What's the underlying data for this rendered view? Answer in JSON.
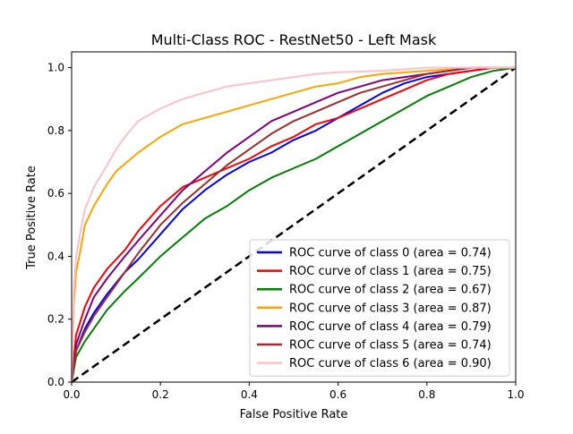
{
  "chart_data": {
    "type": "line",
    "title": "Multi-Class ROC - RestNet50 - Left Mask",
    "xlabel": "False Positive Rate",
    "ylabel": "True Positive Rate",
    "xlim": [
      0,
      1
    ],
    "ylim": [
      0,
      1.05
    ],
    "xticks": [
      "0.0",
      "0.2",
      "0.4",
      "0.6",
      "0.8",
      "1.0"
    ],
    "yticks": [
      "0.0",
      "0.2",
      "0.4",
      "0.6",
      "0.8",
      "1.0"
    ],
    "grid": false,
    "legend_position": "lower right",
    "diagonal": {
      "x": [
        0,
        1
      ],
      "y": [
        0,
        1
      ],
      "color": "#000000",
      "style": "dashed"
    },
    "series": [
      {
        "name": "ROC curve of class 0 (area = 0.74)",
        "color": "#0000ff",
        "points": [
          [
            0,
            0
          ],
          [
            0.01,
            0.1
          ],
          [
            0.03,
            0.17
          ],
          [
            0.05,
            0.22
          ],
          [
            0.08,
            0.28
          ],
          [
            0.12,
            0.35
          ],
          [
            0.15,
            0.39
          ],
          [
            0.2,
            0.47
          ],
          [
            0.25,
            0.55
          ],
          [
            0.3,
            0.61
          ],
          [
            0.35,
            0.66
          ],
          [
            0.4,
            0.7
          ],
          [
            0.45,
            0.73
          ],
          [
            0.5,
            0.77
          ],
          [
            0.55,
            0.8
          ],
          [
            0.6,
            0.84
          ],
          [
            0.65,
            0.88
          ],
          [
            0.7,
            0.92
          ],
          [
            0.75,
            0.95
          ],
          [
            0.8,
            0.97
          ],
          [
            0.85,
            0.98
          ],
          [
            0.9,
            0.99
          ],
          [
            0.95,
            1.0
          ],
          [
            1,
            1
          ]
        ]
      },
      {
        "name": "ROC curve of class 1 (area = 0.75)",
        "color": "#ff0000",
        "points": [
          [
            0,
            0
          ],
          [
            0.01,
            0.15
          ],
          [
            0.03,
            0.24
          ],
          [
            0.05,
            0.3
          ],
          [
            0.08,
            0.36
          ],
          [
            0.12,
            0.42
          ],
          [
            0.15,
            0.48
          ],
          [
            0.2,
            0.56
          ],
          [
            0.25,
            0.62
          ],
          [
            0.3,
            0.65
          ],
          [
            0.35,
            0.68
          ],
          [
            0.4,
            0.71
          ],
          [
            0.45,
            0.75
          ],
          [
            0.5,
            0.78
          ],
          [
            0.55,
            0.82
          ],
          [
            0.6,
            0.84
          ],
          [
            0.65,
            0.87
          ],
          [
            0.7,
            0.9
          ],
          [
            0.75,
            0.93
          ],
          [
            0.8,
            0.96
          ],
          [
            0.85,
            0.98
          ],
          [
            0.9,
            0.99
          ],
          [
            0.95,
            1.0
          ],
          [
            1,
            1
          ]
        ]
      },
      {
        "name": "ROC curve of class 2 (area = 0.67)",
        "color": "#008000",
        "points": [
          [
            0,
            0
          ],
          [
            0.01,
            0.08
          ],
          [
            0.03,
            0.13
          ],
          [
            0.05,
            0.17
          ],
          [
            0.08,
            0.23
          ],
          [
            0.12,
            0.29
          ],
          [
            0.15,
            0.33
          ],
          [
            0.2,
            0.4
          ],
          [
            0.25,
            0.46
          ],
          [
            0.3,
            0.52
          ],
          [
            0.35,
            0.56
          ],
          [
            0.4,
            0.61
          ],
          [
            0.45,
            0.65
          ],
          [
            0.5,
            0.68
          ],
          [
            0.55,
            0.71
          ],
          [
            0.6,
            0.75
          ],
          [
            0.65,
            0.79
          ],
          [
            0.7,
            0.83
          ],
          [
            0.75,
            0.87
          ],
          [
            0.8,
            0.91
          ],
          [
            0.85,
            0.94
          ],
          [
            0.9,
            0.97
          ],
          [
            0.95,
            0.99
          ],
          [
            1,
            1
          ]
        ]
      },
      {
        "name": "ROC curve of class 3 (area = 0.87)",
        "color": "#ffa500",
        "points": [
          [
            0,
            0
          ],
          [
            0.005,
            0.25
          ],
          [
            0.01,
            0.35
          ],
          [
            0.02,
            0.42
          ],
          [
            0.03,
            0.5
          ],
          [
            0.05,
            0.56
          ],
          [
            0.08,
            0.63
          ],
          [
            0.1,
            0.67
          ],
          [
            0.15,
            0.73
          ],
          [
            0.2,
            0.78
          ],
          [
            0.25,
            0.82
          ],
          [
            0.3,
            0.84
          ],
          [
            0.35,
            0.86
          ],
          [
            0.4,
            0.88
          ],
          [
            0.45,
            0.9
          ],
          [
            0.5,
            0.92
          ],
          [
            0.55,
            0.94
          ],
          [
            0.6,
            0.95
          ],
          [
            0.65,
            0.97
          ],
          [
            0.7,
            0.98
          ],
          [
            0.8,
            0.99
          ],
          [
            0.9,
            1.0
          ],
          [
            1,
            1
          ]
        ]
      },
      {
        "name": "ROC curve of class 4 (area = 0.79)",
        "color": "#800080",
        "points": [
          [
            0,
            0
          ],
          [
            0.01,
            0.12
          ],
          [
            0.03,
            0.2
          ],
          [
            0.05,
            0.27
          ],
          [
            0.08,
            0.33
          ],
          [
            0.12,
            0.4
          ],
          [
            0.15,
            0.45
          ],
          [
            0.2,
            0.53
          ],
          [
            0.25,
            0.61
          ],
          [
            0.3,
            0.67
          ],
          [
            0.35,
            0.73
          ],
          [
            0.4,
            0.78
          ],
          [
            0.45,
            0.83
          ],
          [
            0.5,
            0.86
          ],
          [
            0.55,
            0.89
          ],
          [
            0.6,
            0.92
          ],
          [
            0.65,
            0.94
          ],
          [
            0.7,
            0.96
          ],
          [
            0.75,
            0.97
          ],
          [
            0.8,
            0.98
          ],
          [
            0.85,
            0.99
          ],
          [
            0.9,
            1.0
          ],
          [
            1,
            1
          ]
        ]
      },
      {
        "name": "ROC curve of class 5 (area = 0.74)",
        "color": "#a52a2a",
        "points": [
          [
            0,
            0
          ],
          [
            0.01,
            0.1
          ],
          [
            0.03,
            0.16
          ],
          [
            0.05,
            0.21
          ],
          [
            0.08,
            0.27
          ],
          [
            0.12,
            0.35
          ],
          [
            0.15,
            0.41
          ],
          [
            0.2,
            0.5
          ],
          [
            0.25,
            0.57
          ],
          [
            0.3,
            0.63
          ],
          [
            0.35,
            0.69
          ],
          [
            0.4,
            0.74
          ],
          [
            0.45,
            0.79
          ],
          [
            0.5,
            0.83
          ],
          [
            0.55,
            0.86
          ],
          [
            0.6,
            0.89
          ],
          [
            0.65,
            0.92
          ],
          [
            0.7,
            0.94
          ],
          [
            0.75,
            0.96
          ],
          [
            0.8,
            0.98
          ],
          [
            0.85,
            0.99
          ],
          [
            0.9,
            1.0
          ],
          [
            1,
            1
          ]
        ]
      },
      {
        "name": "ROC curve of class 6 (area = 0.90)",
        "color": "#ffc0cb",
        "points": [
          [
            0,
            0
          ],
          [
            0.005,
            0.3
          ],
          [
            0.01,
            0.4
          ],
          [
            0.02,
            0.48
          ],
          [
            0.03,
            0.55
          ],
          [
            0.05,
            0.62
          ],
          [
            0.08,
            0.69
          ],
          [
            0.1,
            0.74
          ],
          [
            0.12,
            0.78
          ],
          [
            0.15,
            0.83
          ],
          [
            0.2,
            0.87
          ],
          [
            0.25,
            0.9
          ],
          [
            0.3,
            0.92
          ],
          [
            0.35,
            0.94
          ],
          [
            0.4,
            0.95
          ],
          [
            0.45,
            0.96
          ],
          [
            0.5,
            0.97
          ],
          [
            0.55,
            0.98
          ],
          [
            0.6,
            0.985
          ],
          [
            0.7,
            0.99
          ],
          [
            0.8,
            1.0
          ],
          [
            1,
            1
          ]
        ]
      }
    ]
  }
}
